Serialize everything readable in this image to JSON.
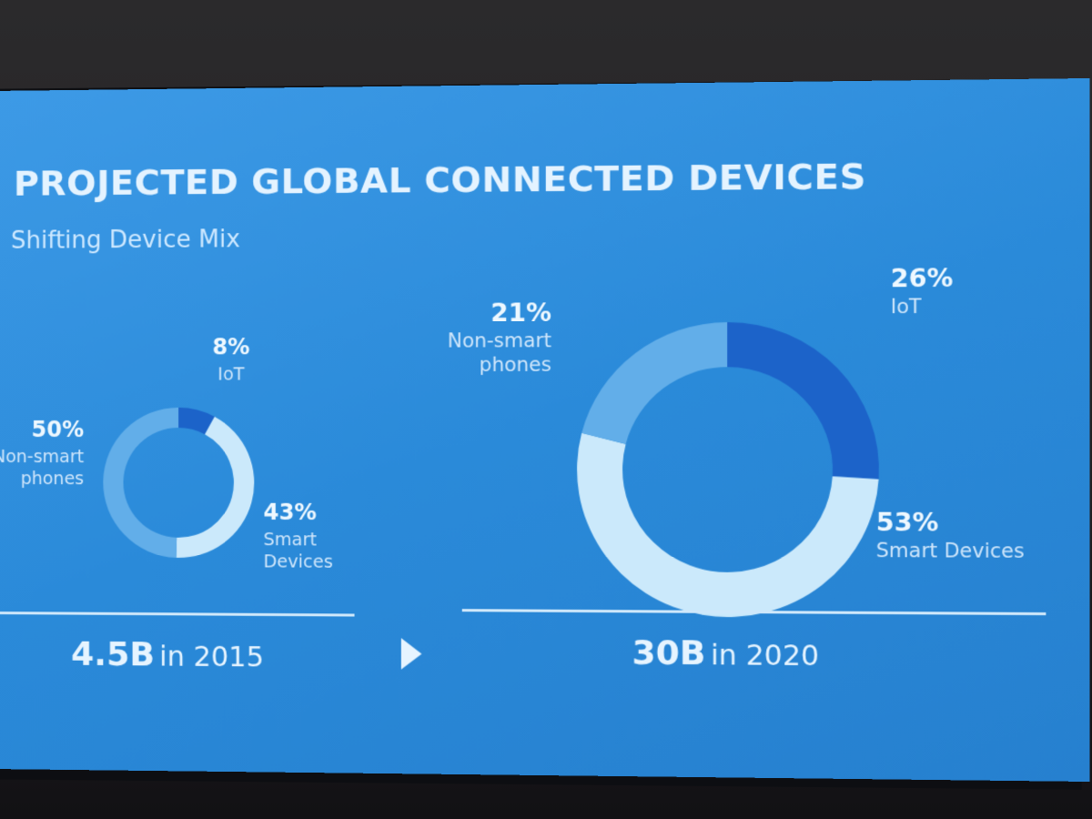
{
  "slide": {
    "title": "PROJECTED GLOBAL CONNECTED DEVICES",
    "subtitle": "Shifting Device Mix"
  },
  "colors": {
    "iot": "#1c63c9",
    "smart_devices": "#cbe9fb",
    "non_smart_phones": "#62aee9"
  },
  "totals": [
    {
      "value": "4.5B",
      "suffix": "in 2015"
    },
    {
      "value": "30B",
      "suffix": "in 2020"
    }
  ],
  "chart_data": [
    {
      "type": "pie",
      "categories": [
        "IoT",
        "Smart Devices",
        "Non-smart phones"
      ],
      "values": [
        8,
        43,
        50
      ],
      "value_labels": [
        "8%",
        "43%",
        "50%"
      ],
      "category_labels": [
        [
          "IoT"
        ],
        [
          "Smart",
          "Devices"
        ],
        [
          "Non-smart",
          "phones"
        ]
      ]
    },
    {
      "type": "pie",
      "categories": [
        "IoT",
        "Smart Devices",
        "Non-smart phones"
      ],
      "values": [
        26,
        53,
        21
      ],
      "value_labels": [
        "26%",
        "53%",
        "21%"
      ],
      "category_labels": [
        [
          "IoT"
        ],
        [
          "Smart Devices"
        ],
        [
          "Non-smart",
          "phones"
        ]
      ]
    }
  ]
}
